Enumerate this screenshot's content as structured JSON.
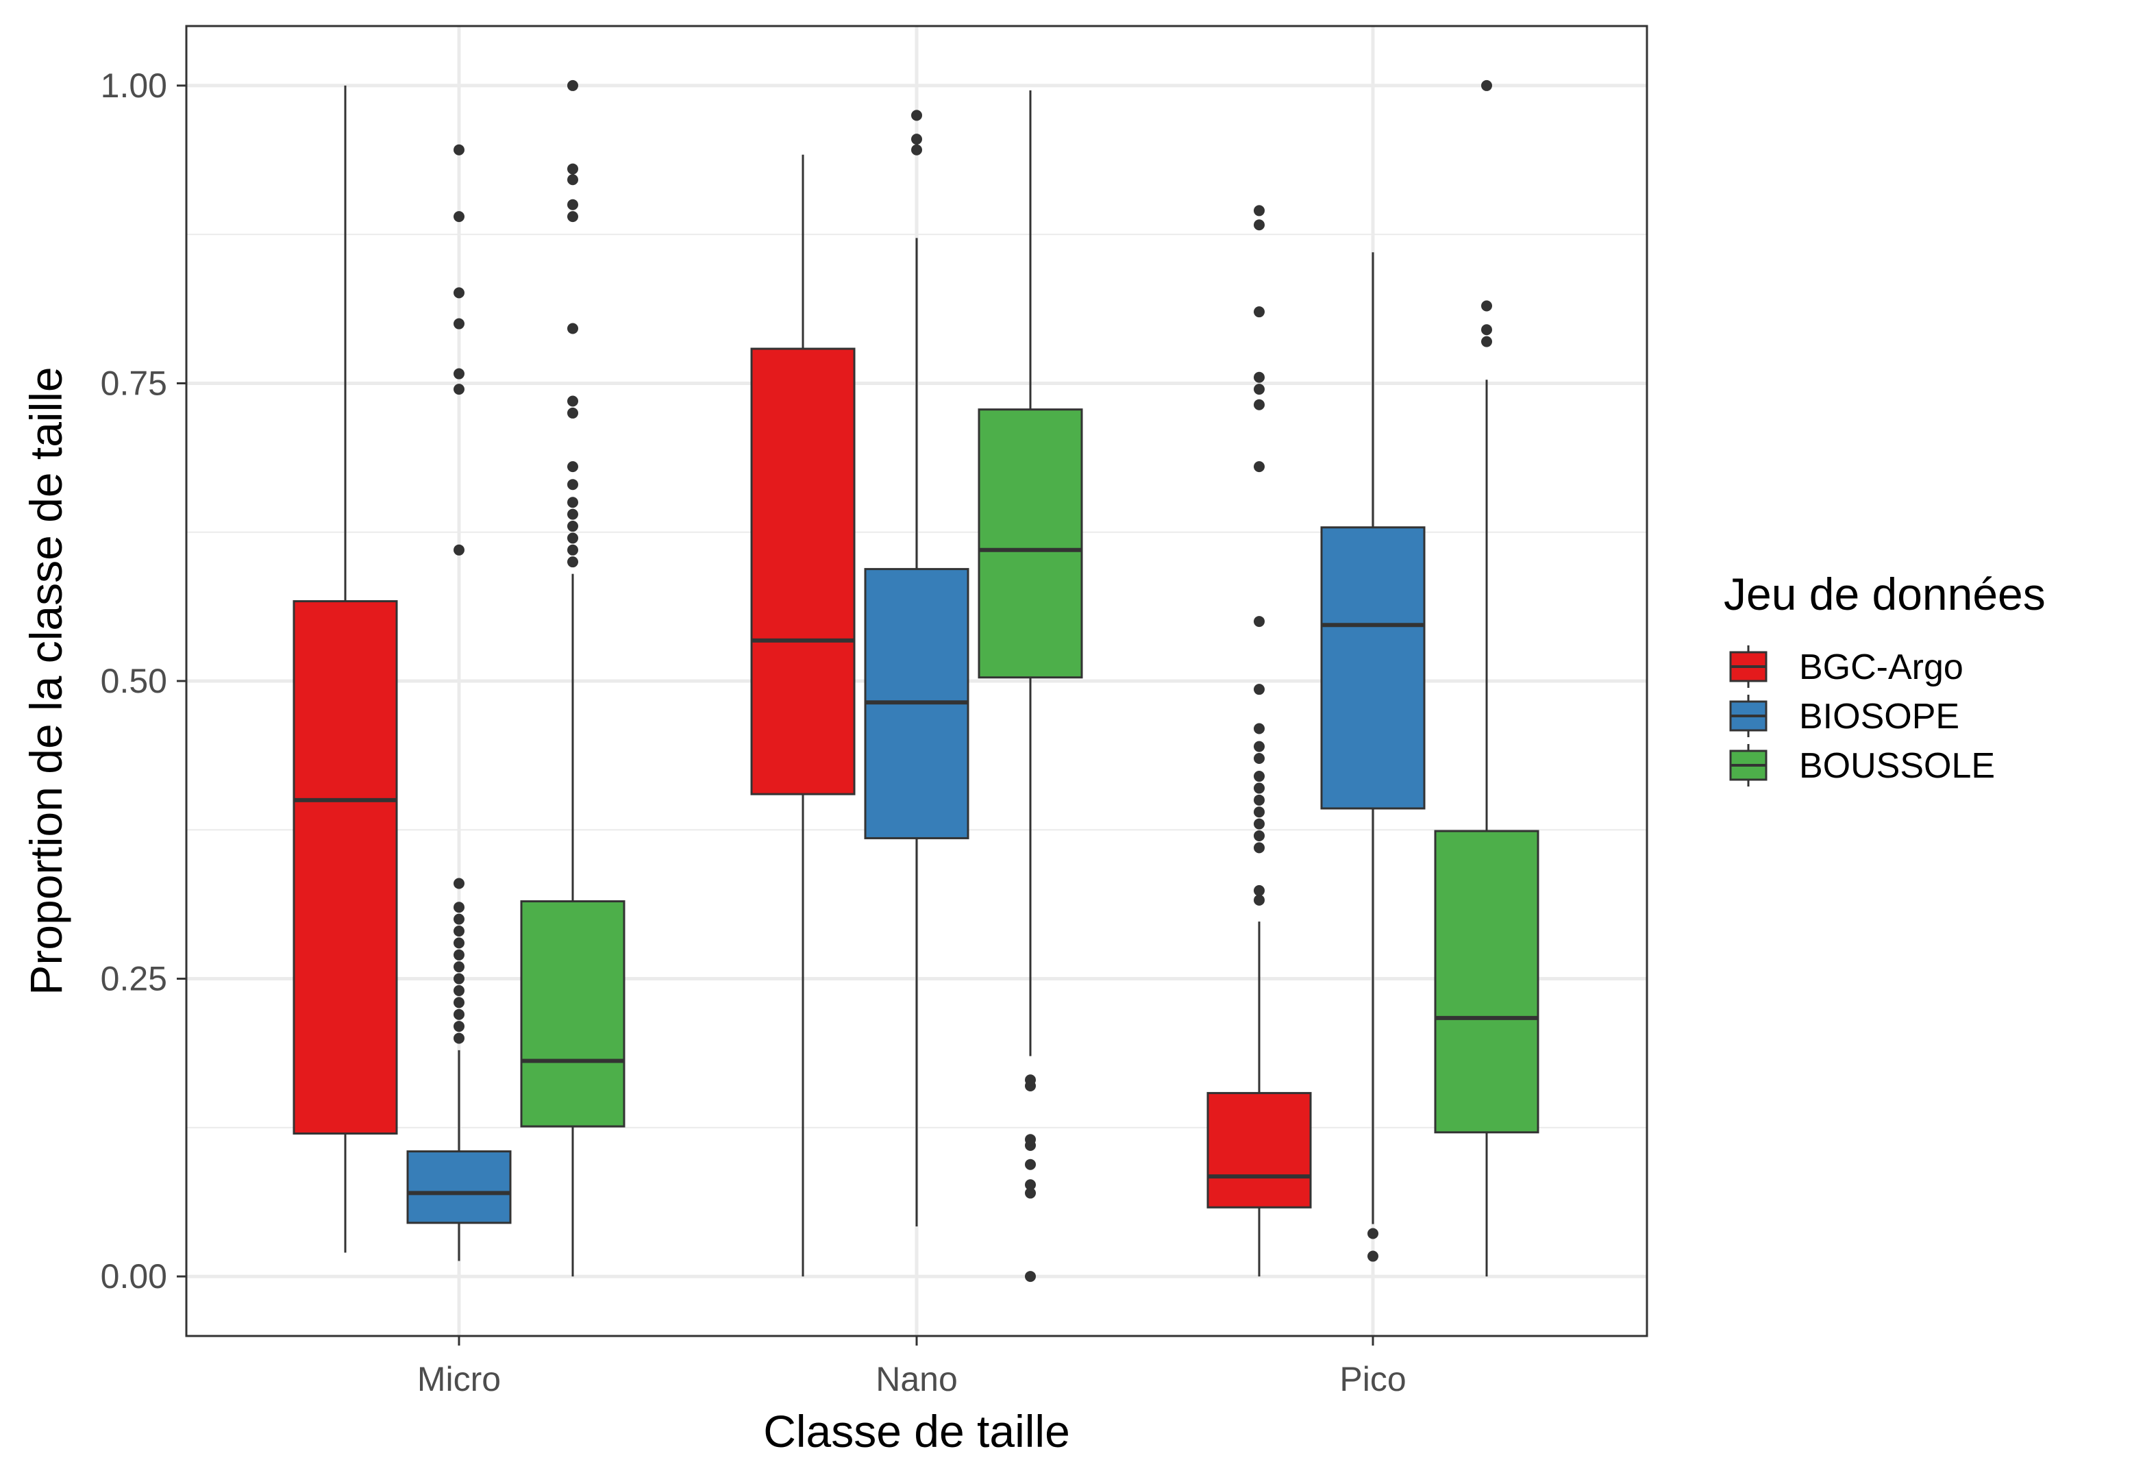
{
  "chart_data": {
    "type": "boxplot",
    "title": "",
    "xlabel": "Classe de taille",
    "ylabel": "Proportion de la classe de taille",
    "ylim": [
      -0.05,
      1.05
    ],
    "yticks": [
      0.0,
      0.25,
      0.5,
      0.75,
      1.0
    ],
    "ytick_labels": [
      "0.00",
      "0.25",
      "0.50",
      "0.75",
      "1.00"
    ],
    "categories": [
      "Micro",
      "Nano",
      "Pico"
    ],
    "grid": true,
    "legend": {
      "title": "Jeu de données",
      "position": "right"
    },
    "series": [
      {
        "name": "BGC-Argo",
        "color": "#e41a1c",
        "boxes": [
          {
            "min": 0.02,
            "q1": 0.12,
            "median": 0.4,
            "q3": 0.567,
            "max": 1.0,
            "outliers": []
          },
          {
            "min": 0.0,
            "q1": 0.405,
            "median": 0.534,
            "q3": 0.779,
            "max": 0.942,
            "outliers": []
          },
          {
            "min": 0.0,
            "q1": 0.058,
            "median": 0.084,
            "q3": 0.154,
            "max": 0.298,
            "outliers": [
              0.316,
              0.324,
              0.36,
              0.37,
              0.38,
              0.39,
              0.4,
              0.41,
              0.42,
              0.435,
              0.445,
              0.46,
              0.493,
              0.55,
              0.68,
              0.732,
              0.745,
              0.755,
              0.81,
              0.883,
              0.895
            ]
          }
        ]
      },
      {
        "name": "BIOSOPE",
        "color": "#377eb8",
        "boxes": [
          {
            "min": 0.013,
            "q1": 0.045,
            "median": 0.07,
            "q3": 0.105,
            "max": 0.19,
            "outliers": [
              0.2,
              0.21,
              0.22,
              0.23,
              0.24,
              0.25,
              0.26,
              0.27,
              0.28,
              0.29,
              0.3,
              0.31,
              0.33,
              0.61,
              0.745,
              0.758,
              0.8,
              0.826,
              0.89,
              0.946
            ]
          },
          {
            "min": 0.042,
            "q1": 0.368,
            "median": 0.482,
            "q3": 0.594,
            "max": 0.872,
            "outliers": [
              0.946,
              0.955,
              0.975
            ]
          },
          {
            "min": 0.044,
            "q1": 0.393,
            "median": 0.547,
            "q3": 0.629,
            "max": 0.86,
            "outliers": [
              0.017,
              0.036
            ]
          }
        ]
      },
      {
        "name": "BOUSSOLE",
        "color": "#4daf4a",
        "boxes": [
          {
            "min": 0.0,
            "q1": 0.126,
            "median": 0.181,
            "q3": 0.315,
            "max": 0.59,
            "outliers": [
              0.6,
              0.61,
              0.62,
              0.63,
              0.64,
              0.65,
              0.665,
              0.68,
              0.725,
              0.735,
              0.796,
              0.89,
              0.9,
              0.921,
              0.93,
              1.0
            ]
          },
          {
            "min": 0.185,
            "q1": 0.503,
            "median": 0.61,
            "q3": 0.728,
            "max": 0.996,
            "outliers": [
              0.0,
              0.07,
              0.077,
              0.094,
              0.11,
              0.115,
              0.16,
              0.165
            ]
          },
          {
            "min": 0.0,
            "q1": 0.121,
            "median": 0.217,
            "q3": 0.374,
            "max": 0.753,
            "outliers": [
              0.785,
              0.795,
              0.815,
              1.0
            ]
          }
        ]
      }
    ]
  }
}
